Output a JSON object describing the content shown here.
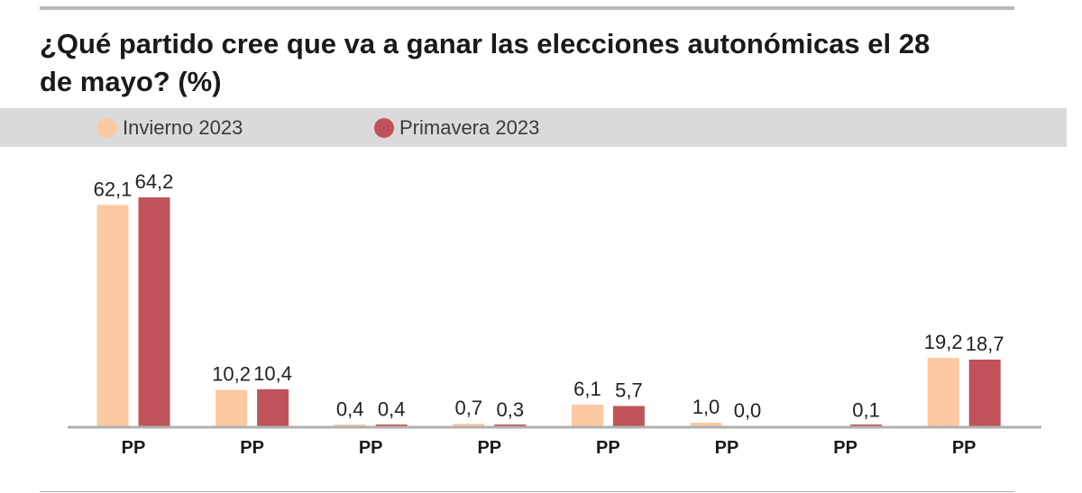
{
  "title": "¿Qué partido cree que va a ganar las elecciones autonómicas el 28 de mayo? (%)",
  "colors": {
    "winter": "#fbc9a2",
    "spring": "#c0535a",
    "axis": "#b0b0b0"
  },
  "chart_data": {
    "type": "bar",
    "title": "¿Qué partido cree que va a ganar las elecciones autonómicas el 28 de mayo? (%)",
    "xlabel": "",
    "ylabel": "%",
    "ylim": [
      0,
      70
    ],
    "legend": "top-left",
    "categories": [
      "PP",
      "PP",
      "PP",
      "PP",
      "PP",
      "PP",
      "PP",
      "PP"
    ],
    "series": [
      {
        "name": "Invierno 2023",
        "color": "#fbc9a2",
        "values": [
          62.1,
          10.2,
          0.4,
          0.7,
          6.1,
          1.0,
          null,
          19.2
        ],
        "labels": [
          "62,1",
          "10,2",
          "0,4",
          "0,7",
          "6,1",
          "1,0",
          "",
          "19,2"
        ]
      },
      {
        "name": "Primavera 2023",
        "color": "#c0535a",
        "values": [
          64.2,
          10.4,
          0.4,
          0.3,
          5.7,
          0.0,
          0.1,
          18.7
        ],
        "labels": [
          "64,2",
          "10,4",
          "0,4",
          "0,3",
          "5,7",
          "0,0",
          "0,1",
          "18,7"
        ]
      }
    ]
  }
}
